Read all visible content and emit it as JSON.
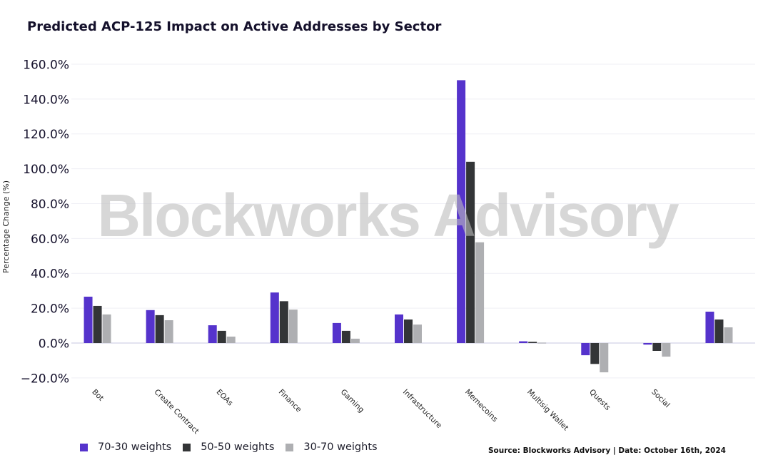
{
  "chart_data": {
    "type": "bar",
    "title": "Predicted ACP-125 Impact on Active Addresses by Sector",
    "xlabel": "",
    "ylabel": "Percentage Change (%)",
    "ylim": [
      -25,
      165
    ],
    "yticks": [
      -20,
      0,
      20,
      40,
      60,
      80,
      100,
      120,
      140,
      160
    ],
    "ytick_labels": [
      "−20.0%",
      "0.0%",
      "20.0%",
      "40.0%",
      "60.0%",
      "80.0%",
      "100.0%",
      "120.0%",
      "140.0%",
      "160.0%"
    ],
    "grid": true,
    "categories": [
      "Bot",
      "Create Contract",
      "EOAs",
      "Finance",
      "Gaming",
      "Infrastructure",
      "Memecoins",
      "Multisig Wallet",
      "Quests",
      "Social",
      ""
    ],
    "series": [
      {
        "name": "70-30 weights",
        "color": "#5533cc",
        "values": [
          26.6,
          18.9,
          10.2,
          29.0,
          11.5,
          16.4,
          150.8,
          1.0,
          -7.0,
          -0.9,
          18.0
        ]
      },
      {
        "name": "50-50 weights",
        "color": "#333537",
        "values": [
          21.3,
          16.0,
          7.0,
          24.0,
          7.0,
          13.5,
          104.0,
          0.7,
          -12.0,
          -4.5,
          13.5
        ]
      },
      {
        "name": "30-70 weights",
        "color": "#aeafb2",
        "values": [
          16.4,
          13.1,
          3.7,
          19.2,
          2.5,
          10.6,
          57.8,
          0.2,
          -16.8,
          -7.8,
          9.0
        ]
      }
    ],
    "legend_position": "bottom-left",
    "watermark": "Blockworks Advisory",
    "source_note": "Source: Blockworks Advisory | Date: October 16th, 2024"
  }
}
